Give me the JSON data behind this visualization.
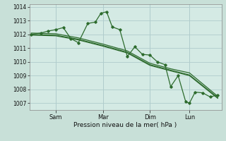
{
  "bg_color": "#c8e0d8",
  "plot_bg": "#d4eae4",
  "grid_color": "#b0cccc",
  "line_color": "#2d6b2d",
  "xlabel": "Pression niveau de la mer( hPa )",
  "ylim": [
    1006.5,
    1014.2
  ],
  "yticks": [
    1007,
    1008,
    1009,
    1010,
    1011,
    1012,
    1013,
    1014
  ],
  "xtick_labels": [
    "Sam",
    "Mar",
    "Dim",
    "Lun"
  ],
  "xtick_positions": [
    0.13,
    0.38,
    0.63,
    0.84
  ],
  "series1_x": [
    0.0,
    0.05,
    0.09,
    0.13,
    0.17,
    0.21,
    0.25,
    0.3,
    0.34,
    0.37,
    0.4,
    0.43,
    0.47,
    0.51,
    0.55,
    0.59,
    0.63,
    0.67,
    0.71,
    0.74,
    0.78,
    0.82,
    0.84,
    0.87,
    0.91,
    0.95,
    0.99
  ],
  "series1_y": [
    1012.0,
    1012.1,
    1012.25,
    1012.35,
    1012.5,
    1011.7,
    1011.4,
    1012.8,
    1012.9,
    1013.55,
    1013.65,
    1012.55,
    1012.35,
    1010.4,
    1011.1,
    1010.55,
    1010.5,
    1010.0,
    1009.8,
    1008.2,
    1009.0,
    1007.1,
    1007.0,
    1007.8,
    1007.75,
    1007.45,
    1007.6
  ],
  "series2_x": [
    0.0,
    0.13,
    0.25,
    0.38,
    0.51,
    0.63,
    0.74,
    0.84,
    0.99
  ],
  "series2_y": [
    1012.1,
    1012.05,
    1011.75,
    1011.3,
    1010.8,
    1009.9,
    1009.5,
    1009.2,
    1007.5
  ],
  "series3_x": [
    0.0,
    0.13,
    0.25,
    0.38,
    0.51,
    0.63,
    0.74,
    0.84,
    0.99
  ],
  "series3_y": [
    1012.0,
    1011.95,
    1011.65,
    1011.2,
    1010.7,
    1009.8,
    1009.4,
    1009.05,
    1007.4
  ],
  "series4_x": [
    0.0,
    0.13,
    0.25,
    0.38,
    0.51,
    0.63,
    0.74,
    0.84,
    0.99
  ],
  "series4_y": [
    1011.95,
    1011.9,
    1011.6,
    1011.15,
    1010.65,
    1009.75,
    1009.35,
    1009.0,
    1007.35
  ]
}
